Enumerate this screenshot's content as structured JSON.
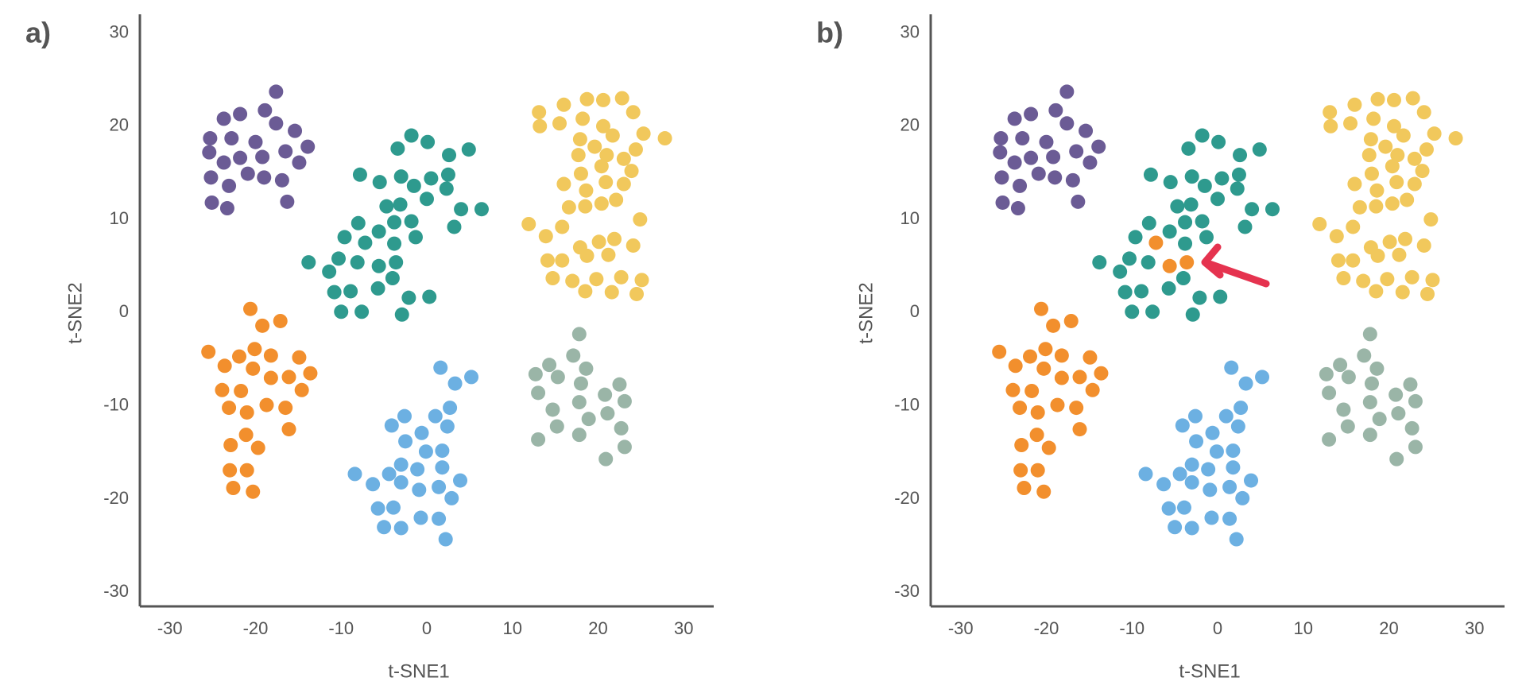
{
  "chart_data": [
    {
      "type": "scatter",
      "panel_label": "a)",
      "xlabel": "t-SNE1",
      "ylabel": "t-SNE2",
      "xlim": [
        -33.5,
        33.5
      ],
      "ylim": [
        -31.5,
        32
      ],
      "xticks": [
        -30,
        -20,
        -10,
        0,
        10,
        20,
        30
      ],
      "yticks": [
        -30,
        -20,
        -10,
        0,
        10,
        20,
        30
      ],
      "series": [
        {
          "color": "#6b5b95",
          "x": [
            -17.6,
            -23.7,
            -21.8,
            -18.9,
            -25.3,
            -22.8,
            -20.0,
            -17.6,
            -15.4,
            -13.9,
            -25.4,
            -23.7,
            -21.8,
            -19.2,
            -16.5,
            -14.9,
            -25.2,
            -23.1,
            -20.9,
            -19.0,
            -16.9,
            -23.3,
            -25.1,
            -16.3
          ],
          "y": [
            23.7,
            20.8,
            21.3,
            21.7,
            18.7,
            18.7,
            18.3,
            20.3,
            19.5,
            17.8,
            17.2,
            16.1,
            16.6,
            16.7,
            17.3,
            16.1,
            14.5,
            13.6,
            14.9,
            14.5,
            14.2,
            11.2,
            11.8,
            11.9
          ]
        },
        {
          "color": "#2e9a8e",
          "x": [
            -1.8,
            0.1,
            -3.4,
            4.9,
            2.6,
            -7.8,
            -5.5,
            -3.0,
            0.5,
            2.5,
            -1.5,
            -4.7,
            -3.1,
            0.0,
            2.3,
            4.0,
            6.4,
            -8.0,
            -5.6,
            -3.8,
            -1.8,
            -9.6,
            -7.2,
            -3.8,
            -1.3,
            3.2,
            -13.8,
            -11.4,
            -10.3,
            -8.1,
            -5.6,
            -3.6,
            -10.8,
            -8.9,
            -5.7,
            -4.0,
            -2.1,
            0.3,
            -10.0,
            -7.6,
            -2.9
          ],
          "y": [
            19.0,
            18.3,
            17.6,
            17.5,
            16.9,
            14.8,
            14.0,
            14.6,
            14.4,
            14.8,
            13.6,
            11.4,
            11.6,
            12.2,
            13.3,
            11.1,
            11.1,
            9.6,
            8.7,
            9.7,
            9.8,
            8.1,
            7.5,
            7.4,
            8.1,
            9.2,
            5.4,
            4.4,
            5.8,
            5.4,
            5.0,
            5.4,
            2.2,
            2.3,
            2.6,
            3.7,
            1.6,
            1.7,
            0.1,
            0.1,
            -0.2
          ]
        },
        {
          "color": "#f1c85c",
          "x": [
            18.7,
            13.1,
            16.0,
            20.6,
            22.8,
            13.2,
            15.5,
            18.2,
            20.6,
            24.1,
            25.3,
            27.8,
            17.9,
            19.6,
            21.7,
            24.4,
            17.7,
            21.0,
            23.0,
            16.0,
            18.0,
            20.4,
            23.9,
            18.6,
            20.9,
            23.0,
            16.6,
            18.5,
            20.4,
            22.1,
            11.9,
            13.9,
            15.8,
            17.9,
            20.1,
            21.9,
            24.9,
            14.1,
            15.8,
            18.7,
            21.2,
            24.1,
            14.7,
            17.0,
            19.8,
            22.7,
            25.1,
            18.5,
            21.6,
            24.5
          ],
          "y": [
            22.9,
            21.5,
            22.3,
            22.8,
            23.0,
            20.0,
            20.3,
            20.8,
            20.0,
            21.5,
            19.2,
            18.7,
            18.6,
            17.8,
            19.0,
            17.5,
            16.9,
            16.9,
            16.5,
            13.8,
            14.9,
            15.7,
            15.2,
            13.1,
            14.0,
            13.8,
            11.3,
            11.4,
            11.7,
            12.1,
            9.5,
            8.2,
            9.2,
            7.0,
            7.6,
            7.9,
            10.0,
            5.6,
            5.6,
            6.1,
            6.2,
            7.2,
            3.7,
            3.4,
            3.6,
            3.8,
            3.5,
            2.3,
            2.2,
            2.0
          ]
        },
        {
          "color": "#f28f2d",
          "x": [
            -20.6,
            -19.2,
            -17.1,
            -25.5,
            -23.6,
            -21.9,
            -20.1,
            -18.2,
            -14.9,
            -13.6,
            -20.3,
            -18.2,
            -16.1,
            -23.9,
            -21.7,
            -14.6,
            -23.1,
            -21.0,
            -18.7,
            -16.5,
            -16.1,
            -21.1,
            -22.9,
            -19.7,
            -23.0,
            -21.0,
            -22.6,
            -20.3
          ],
          "y": [
            0.4,
            -1.4,
            -0.9,
            -4.2,
            -5.7,
            -4.7,
            -3.9,
            -4.6,
            -4.8,
            -6.5,
            -6.0,
            -7.0,
            -6.9,
            -8.3,
            -8.4,
            -8.3,
            -10.2,
            -10.7,
            -9.9,
            -10.2,
            -12.5,
            -13.1,
            -14.2,
            -14.5,
            -16.9,
            -16.9,
            -18.8,
            -19.2
          ]
        },
        {
          "color": "#6cb0e2",
          "x": [
            1.6,
            3.3,
            5.2,
            2.7,
            1.0,
            -2.6,
            -4.1,
            -0.6,
            2.4,
            -2.5,
            -0.1,
            1.8,
            -3.0,
            -1.1,
            1.8,
            -6.3,
            -4.4,
            -3.0,
            -0.9,
            1.4,
            3.9,
            -8.4,
            2.9,
            -5.7,
            -3.9,
            -0.7,
            1.4,
            -5.0,
            -3.0,
            2.2
          ],
          "y": [
            -5.9,
            -7.6,
            -6.9,
            -10.2,
            -11.1,
            -11.1,
            -12.1,
            -12.9,
            -12.2,
            -13.8,
            -14.9,
            -14.8,
            -16.3,
            -16.8,
            -16.6,
            -18.4,
            -17.3,
            -18.2,
            -19.0,
            -18.7,
            -18.0,
            -17.3,
            -19.9,
            -21.0,
            -20.9,
            -22.0,
            -22.1,
            -23.0,
            -23.1,
            -24.3
          ]
        },
        {
          "color": "#9ab5a7",
          "x": [
            17.8,
            17.1,
            14.3,
            12.7,
            15.3,
            13.0,
            14.7,
            15.2,
            13.0,
            18.6,
            18.0,
            17.8,
            20.8,
            22.5,
            18.9,
            21.1,
            23.1,
            22.7,
            17.8,
            20.9,
            23.1
          ],
          "y": [
            -2.3,
            -4.6,
            -5.6,
            -6.6,
            -6.9,
            -8.6,
            -10.4,
            -12.2,
            -13.6,
            -6.0,
            -7.6,
            -9.6,
            -8.8,
            -7.7,
            -11.4,
            -10.8,
            -9.5,
            -12.4,
            -13.1,
            -15.7,
            -14.4
          ]
        }
      ]
    },
    {
      "type": "scatter",
      "panel_label": "b)",
      "xlabel": "t-SNE1",
      "ylabel": "t-SNE2",
      "xlim": [
        -33.5,
        33.5
      ],
      "ylim": [
        -31.5,
        32
      ],
      "xticks": [
        -30,
        -20,
        -10,
        0,
        10,
        20,
        30
      ],
      "yticks": [
        -30,
        -20,
        -10,
        0,
        10,
        20,
        30
      ],
      "arrow_color": "#e5334f",
      "series": [
        {
          "color": "#6b5b95",
          "x": [
            -17.6,
            -23.7,
            -21.8,
            -18.9,
            -25.3,
            -22.8,
            -20.0,
            -17.6,
            -15.4,
            -13.9,
            -25.4,
            -23.7,
            -21.8,
            -19.2,
            -16.5,
            -14.9,
            -25.2,
            -23.1,
            -20.9,
            -19.0,
            -16.9,
            -23.3,
            -25.1,
            -16.3
          ],
          "y": [
            23.7,
            20.8,
            21.3,
            21.7,
            18.7,
            18.7,
            18.3,
            20.3,
            19.5,
            17.8,
            17.2,
            16.1,
            16.6,
            16.7,
            17.3,
            16.1,
            14.5,
            13.6,
            14.9,
            14.5,
            14.2,
            11.2,
            11.8,
            11.9
          ]
        },
        {
          "color": "#2e9a8e",
          "x": [
            -1.8,
            0.1,
            -3.4,
            4.9,
            2.6,
            -7.8,
            -5.5,
            -3.0,
            0.5,
            2.5,
            -1.5,
            -4.7,
            -3.1,
            0.0,
            2.3,
            4.0,
            6.4,
            -8.0,
            -5.6,
            -3.8,
            -1.8,
            -9.6,
            -3.8,
            -1.3,
            3.2,
            -13.8,
            -11.4,
            -10.3,
            -8.1,
            -10.8,
            -8.9,
            -5.7,
            -4.0,
            -2.1,
            0.3,
            -10.0,
            -7.6,
            -2.9
          ],
          "y": [
            19.0,
            18.3,
            17.6,
            17.5,
            16.9,
            14.8,
            14.0,
            14.6,
            14.4,
            14.8,
            13.6,
            11.4,
            11.6,
            12.2,
            13.3,
            11.1,
            11.1,
            9.6,
            8.7,
            9.7,
            9.8,
            8.1,
            7.4,
            8.1,
            9.2,
            5.4,
            4.4,
            5.8,
            5.4,
            2.2,
            2.3,
            2.6,
            3.7,
            1.6,
            1.7,
            0.1,
            0.1,
            -0.2
          ]
        },
        {
          "color": "#f1c85c",
          "x": [
            18.7,
            13.1,
            16.0,
            20.6,
            22.8,
            13.2,
            15.5,
            18.2,
            20.6,
            24.1,
            25.3,
            27.8,
            17.9,
            19.6,
            21.7,
            24.4,
            17.7,
            21.0,
            23.0,
            16.0,
            18.0,
            20.4,
            23.9,
            18.6,
            20.9,
            23.0,
            16.6,
            18.5,
            20.4,
            22.1,
            11.9,
            13.9,
            15.8,
            17.9,
            20.1,
            21.9,
            24.9,
            14.1,
            15.8,
            18.7,
            21.2,
            24.1,
            14.7,
            17.0,
            19.8,
            22.7,
            25.1,
            18.5,
            21.6,
            24.5
          ],
          "y": [
            22.9,
            21.5,
            22.3,
            22.8,
            23.0,
            20.0,
            20.3,
            20.8,
            20.0,
            21.5,
            19.2,
            18.7,
            18.6,
            17.8,
            19.0,
            17.5,
            16.9,
            16.9,
            16.5,
            13.8,
            14.9,
            15.7,
            15.2,
            13.1,
            14.0,
            13.8,
            11.3,
            11.4,
            11.7,
            12.1,
            9.5,
            8.2,
            9.2,
            7.0,
            7.6,
            7.9,
            10.0,
            5.6,
            5.6,
            6.1,
            6.2,
            7.2,
            3.7,
            3.4,
            3.6,
            3.8,
            3.5,
            2.3,
            2.2,
            2.0
          ]
        },
        {
          "color": "#f28f2d",
          "x": [
            -20.6,
            -19.2,
            -17.1,
            -25.5,
            -23.6,
            -21.9,
            -20.1,
            -18.2,
            -14.9,
            -13.6,
            -20.3,
            -18.2,
            -16.1,
            -23.9,
            -21.7,
            -14.6,
            -23.1,
            -21.0,
            -18.7,
            -16.5,
            -16.1,
            -21.1,
            -22.9,
            -19.7,
            -23.0,
            -21.0,
            -22.6,
            -20.3,
            -7.2,
            -5.6,
            -3.6
          ],
          "y": [
            0.4,
            -1.4,
            -0.9,
            -4.2,
            -5.7,
            -4.7,
            -3.9,
            -4.6,
            -4.8,
            -6.5,
            -6.0,
            -7.0,
            -6.9,
            -8.3,
            -8.4,
            -8.3,
            -10.2,
            -10.7,
            -9.9,
            -10.2,
            -12.5,
            -13.1,
            -14.2,
            -14.5,
            -16.9,
            -16.9,
            -18.8,
            -19.2,
            7.5,
            5.0,
            5.4
          ]
        },
        {
          "color": "#6cb0e2",
          "x": [
            1.6,
            3.3,
            5.2,
            2.7,
            1.0,
            -2.6,
            -4.1,
            -0.6,
            2.4,
            -2.5,
            -0.1,
            1.8,
            -3.0,
            -1.1,
            1.8,
            -6.3,
            -4.4,
            -3.0,
            -0.9,
            1.4,
            3.9,
            -8.4,
            2.9,
            -5.7,
            -3.9,
            -0.7,
            1.4,
            -5.0,
            -3.0,
            2.2
          ],
          "y": [
            -5.9,
            -7.6,
            -6.9,
            -10.2,
            -11.1,
            -11.1,
            -12.1,
            -12.9,
            -12.2,
            -13.8,
            -14.9,
            -14.8,
            -16.3,
            -16.8,
            -16.6,
            -18.4,
            -17.3,
            -18.2,
            -19.0,
            -18.7,
            -18.0,
            -17.3,
            -19.9,
            -21.0,
            -20.9,
            -22.0,
            -22.1,
            -23.0,
            -23.1,
            -24.3
          ]
        },
        {
          "color": "#9ab5a7",
          "x": [
            17.8,
            17.1,
            14.3,
            12.7,
            15.3,
            13.0,
            14.7,
            15.2,
            13.0,
            18.6,
            18.0,
            17.8,
            20.8,
            22.5,
            18.9,
            21.1,
            23.1,
            22.7,
            17.8,
            20.9,
            23.1
          ],
          "y": [
            -2.3,
            -4.6,
            -5.6,
            -6.6,
            -6.9,
            -8.6,
            -10.4,
            -12.2,
            -13.6,
            -6.0,
            -7.6,
            -9.6,
            -8.8,
            -7.7,
            -11.4,
            -10.8,
            -9.5,
            -12.4,
            -13.1,
            -15.7,
            -14.4
          ]
        }
      ]
    }
  ]
}
